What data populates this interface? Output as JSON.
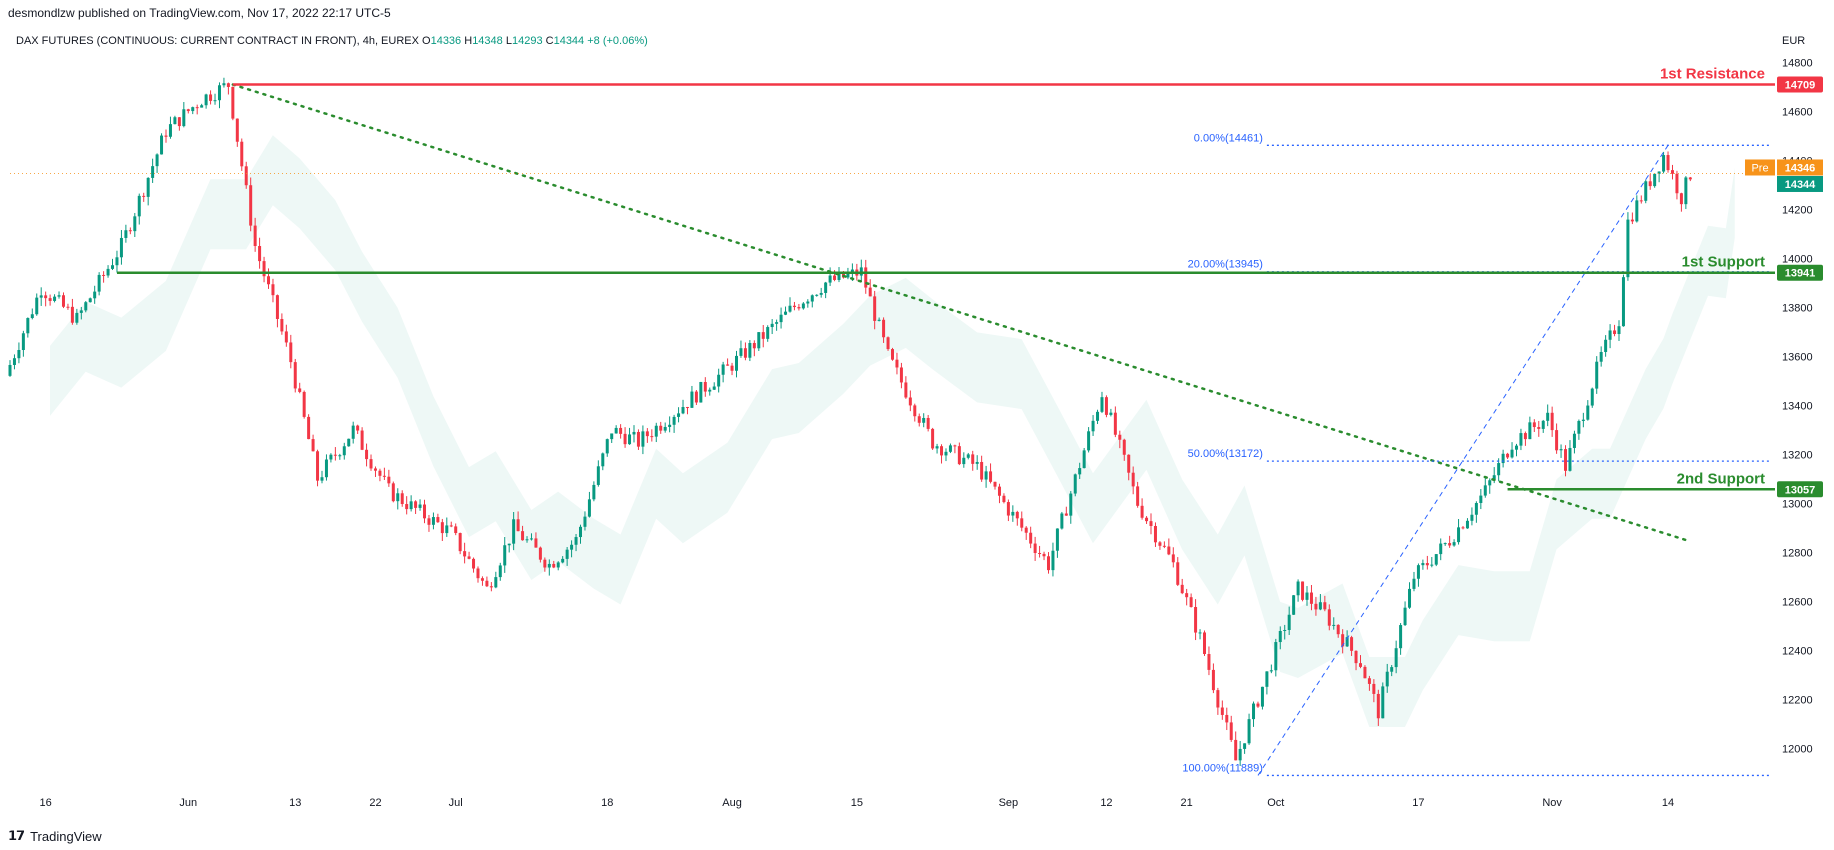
{
  "header": {
    "published": "desmondlzw published on TradingView.com, Nov 17, 2022 22:17 UTC-5"
  },
  "symbol": {
    "title": "DAX FUTURES (CONTINUOUS: CURRENT CONTRACT IN FRONT), 4h, EUREX",
    "o_label": "O",
    "o": "14336",
    "h_label": "H",
    "h": "14348",
    "l_label": "L",
    "l": "14293",
    "c_label": "C",
    "c": "14344",
    "change": "+8 (+0.06%)"
  },
  "currency": "EUR",
  "footer": {
    "brand": "TradingView",
    "logo": "tradingview-logo-icon"
  },
  "colors": {
    "up": "#089981",
    "down": "#f23645",
    "resistance": "#f23645",
    "support": "#2a8c2e",
    "fib": "#2962ff",
    "trend": "#2a8c2e",
    "pre": "#f7931a",
    "last": "#089981"
  },
  "chart_data": {
    "type": "line",
    "title": "",
    "ylabel": "EUR",
    "ylim": [
      11850,
      14850
    ],
    "y_ticks": [
      12000,
      12200,
      12400,
      12600,
      12800,
      13000,
      13200,
      13400,
      13600,
      13800,
      14000,
      14200,
      14400,
      14600,
      14800
    ],
    "x_ticks": [
      "16",
      "Jun",
      "13",
      "22",
      "Jul",
      "18",
      "Aug",
      "15",
      "Sep",
      "12",
      "21",
      "Oct",
      "17",
      "Nov",
      "14"
    ],
    "series": [
      {
        "x": [
          "2022-05-12",
          "2022-05-16",
          "2022-05-20",
          "2022-05-25",
          "2022-05-30",
          "2022-06-03",
          "2022-06-06",
          "2022-06-09",
          "2022-06-13",
          "2022-06-16",
          "2022-06-20",
          "2022-06-24",
          "2022-06-28",
          "2022-07-01",
          "2022-07-05",
          "2022-07-08",
          "2022-07-12",
          "2022-07-15",
          "2022-07-19",
          "2022-07-22",
          "2022-07-27",
          "2022-08-01",
          "2022-08-04",
          "2022-08-09",
          "2022-08-12",
          "2022-08-16",
          "2022-08-19",
          "2022-08-24",
          "2022-08-29",
          "2022-09-02",
          "2022-09-06",
          "2022-09-12",
          "2022-09-16",
          "2022-09-20",
          "2022-09-23",
          "2022-09-27",
          "2022-09-29",
          "2022-10-04",
          "2022-10-07",
          "2022-10-11",
          "2022-10-13",
          "2022-10-17",
          "2022-10-21",
          "2022-10-25",
          "2022-10-28",
          "2022-11-01",
          "2022-11-03",
          "2022-11-07",
          "2022-11-09",
          "2022-11-10",
          "2022-11-14",
          "2022-11-16",
          "2022-11-17"
        ],
        "values": [
          13520,
          13880,
          13750,
          14050,
          14520,
          14650,
          14709,
          14050,
          13580,
          13100,
          13300,
          13050,
          12950,
          12880,
          12650,
          12900,
          12750,
          12850,
          13300,
          13250,
          13400,
          13550,
          13650,
          13820,
          13900,
          13945,
          13600,
          13250,
          13150,
          12950,
          12750,
          13450,
          13000,
          12750,
          12450,
          11950,
          12150,
          12650,
          12550,
          12350,
          12150,
          12700,
          12850,
          13050,
          13250,
          13350,
          13150,
          13600,
          13750,
          14150,
          14420,
          14250,
          14344
        ]
      }
    ],
    "levels": [
      {
        "label": "1st Resistance",
        "value": 14709
      },
      {
        "label": "1st Support",
        "value": 13941
      },
      {
        "label": "2nd Support",
        "value": 13057
      }
    ],
    "fibonacci": [
      {
        "label": "0.00%(14461)",
        "value": 14461
      },
      {
        "label": "20.00%(13945)",
        "value": 13945
      },
      {
        "label": "50.00%(13172)",
        "value": 13172
      },
      {
        "label": "100.00%(11889)",
        "value": 11889
      }
    ],
    "price_badges": [
      {
        "label": "Pre",
        "value": 14346
      },
      {
        "label": "",
        "value": 14344
      }
    ],
    "trendline": {
      "x": [
        "2022-06-06",
        "2022-11-16"
      ],
      "values": [
        14709,
        12850
      ]
    },
    "fib_line": {
      "x": [
        "2022-09-29",
        "2022-11-14"
      ],
      "values": [
        11889,
        14461
      ]
    }
  }
}
